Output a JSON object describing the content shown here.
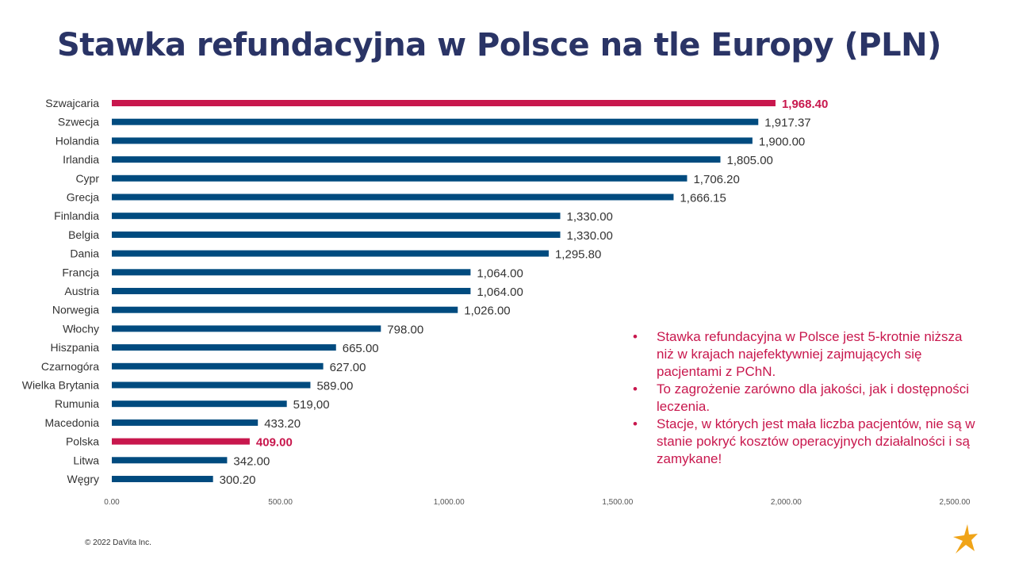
{
  "slide": {
    "title": "Stawka refundacyjna w Polsce na tle Europy (PLN)",
    "footer": "© 2022 DaVita Inc.",
    "logo_icon": "star-logo-icon",
    "notes": [
      "Stawka refundacyjna w Polsce jest 5-krotnie niższa niż w krajach najefektywniej zajmujących się pacjentami z PChN.",
      "To zagrożenie zarówno dla jakości, jak i dostępności leczenia.",
      "Stacje, w których jest mała liczba pacjentów, nie są w stanie pokryć kosztów operacyjnych działalności i są zamykane!"
    ],
    "bullet_symbol": "•"
  },
  "chart_data": {
    "type": "bar",
    "orientation": "horizontal",
    "title": "Stawka refundacyjna w Polsce na tle Europy (PLN)",
    "categories": [
      "Szwajcaria",
      "Szwecja",
      "Holandia",
      "Irlandia",
      "Cypr",
      "Grecja",
      "Finlandia",
      "Belgia",
      "Dania",
      "Francja",
      "Austria",
      "Norwegia",
      "Włochy",
      "Hiszpania",
      "Czarnogóra",
      "Wielka Brytania",
      "Rumunia",
      "Macedonia",
      "Polska",
      "Litwa",
      "Węgry"
    ],
    "values": [
      1968.4,
      1917.37,
      1900.0,
      1805.0,
      1706.2,
      1666.15,
      1330.0,
      1330.0,
      1295.8,
      1064.0,
      1064.0,
      1026.0,
      798.0,
      665.0,
      627.0,
      589.0,
      519.0,
      433.2,
      409.0,
      342.0,
      300.2
    ],
    "value_labels": [
      "1,968.40",
      "1,917.37",
      "1,900.00",
      "1,805.00",
      "1,706.20",
      "1,666.15",
      "1,330.00",
      "1,330.00",
      "1,295.80",
      "1,064.00",
      "1,064.00",
      "1,026.00",
      "798.00",
      "665.00",
      "627.00",
      "589.00",
      "519,00",
      "433.20",
      "409.00",
      "342.00",
      "300.20"
    ],
    "highlighted": [
      "Szwajcaria",
      "Polska"
    ],
    "xlim": [
      0,
      2500
    ],
    "x_ticks": [
      0,
      500,
      1000,
      1500,
      2000,
      2500
    ],
    "x_tick_labels": [
      "0.00",
      "500.00",
      "1,000.00",
      "1,500.00",
      "2,000.00",
      "2,500.00"
    ],
    "colors": {
      "bar": "#004b7f",
      "highlight": "#c8174d"
    },
    "grid": false,
    "legend": "none"
  }
}
